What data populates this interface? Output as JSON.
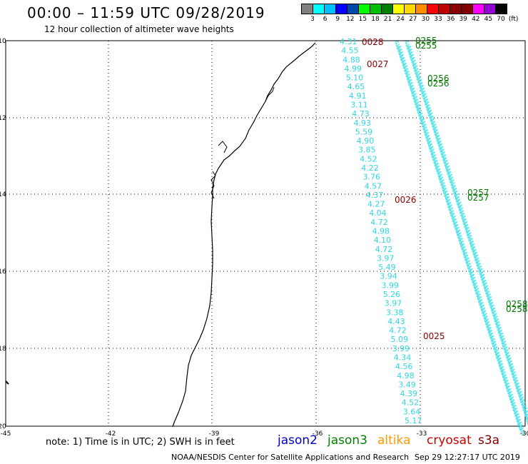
{
  "title": "00:00 – 11:59 UTC 09/28/2019",
  "subtitle": "12 hour collection of altimeter wave heights",
  "scale": {
    "colors": [
      "#808080",
      "#00ffff",
      "#00bfff",
      "#0000ff",
      "#0047ab",
      "#00ff00",
      "#00c000",
      "#008000",
      "#ffff00",
      "#ffd700",
      "#ff8c00",
      "#ff0000",
      "#c00000",
      "#8b0000",
      "#800000",
      "#ff00ff",
      "#9400d3",
      "#000000"
    ],
    "labels": [
      "3",
      "6",
      "9",
      "12",
      "15",
      "18",
      "21",
      "24",
      "27",
      "30",
      "33",
      "36",
      "39",
      "42",
      "45",
      "70",
      "(ft)"
    ]
  },
  "axes": {
    "lat_labels": [
      "-10",
      "-12",
      "-14",
      "-16",
      "-18",
      "-20"
    ],
    "lon_labels": [
      "-45",
      "-42",
      "-39",
      "-36",
      "-33",
      "-30"
    ]
  },
  "track_values": [
    "4.31",
    "4.55",
    "4.88",
    "4.99",
    "5.10",
    "4.65",
    "4.91",
    "3.11",
    "4.73",
    "4.93",
    "5.59",
    "4.90",
    "3.85",
    "4.52",
    "4.22",
    "3.76",
    "4.57",
    "4.37",
    "4.27",
    "4.04",
    "4.72",
    "4.98",
    "4.10",
    "4.72",
    "3.97",
    "5.49",
    "3.94",
    "3.99",
    "5.26",
    "3.97",
    "3.38",
    "4.43",
    "4.72",
    "5.09",
    "3.99",
    "4.34",
    "4.56",
    "4.98",
    "3.49",
    "4.39",
    "4.52",
    "3.64",
    "5.17"
  ],
  "time_labels": {
    "cryosat": [
      "0028",
      "0027",
      "0026",
      "0025"
    ],
    "jason3": [
      "0255",
      "0255",
      "0256",
      "0256",
      "0257",
      "0257",
      "0258",
      "0258"
    ]
  },
  "note": "note: 1) Time is in UTC; 2) SWH is in feet",
  "legend": [
    {
      "name": "jason2",
      "color": "#0000cc"
    },
    {
      "name": "jason3",
      "color": "#008000"
    },
    {
      "name": "altika",
      "color": "#ff9900"
    },
    {
      "name": "cryosat",
      "color": "#cc0000"
    },
    {
      "name": "s3a",
      "color": "#800000"
    }
  ],
  "credit": "NOAA/NESDIS Center for Satellite Applications and Research",
  "timestamp": "Sep 29 12:27:17 UTC 2019"
}
